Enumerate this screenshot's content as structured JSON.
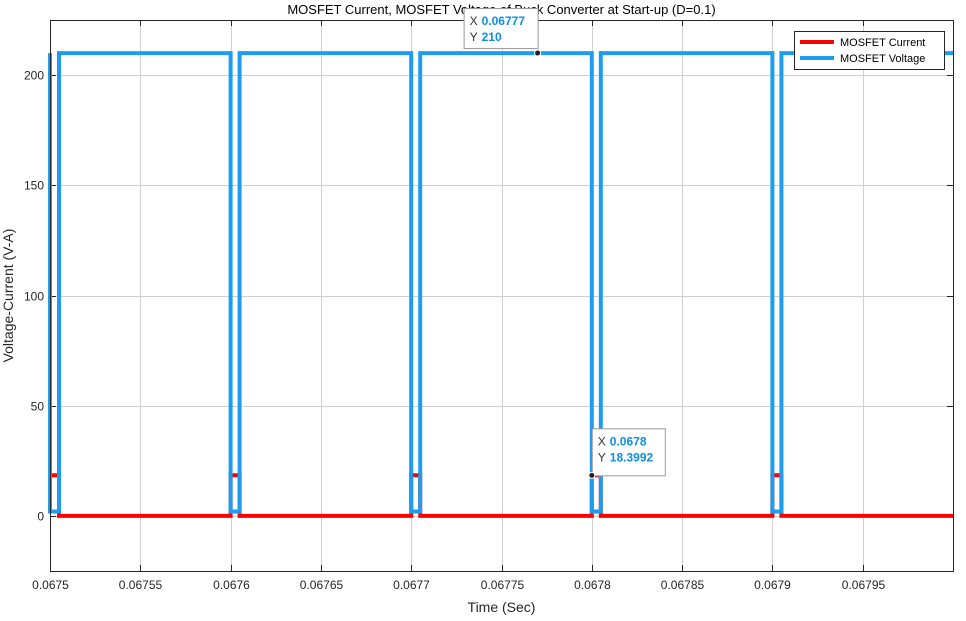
{
  "chart_data": {
    "type": "line",
    "title": "MOSFET Current, MOSFET Voltage of Buck Converter at Start-up (D=0.1)",
    "xlabel": "Time (Sec)",
    "ylabel": "Voltage-Current (V-A)",
    "xlim": [
      0.0675,
      0.068
    ],
    "ylim": [
      -25,
      225
    ],
    "xticks": [
      0.0675,
      0.06755,
      0.0676,
      0.06765,
      0.0677,
      0.06775,
      0.0678,
      0.06785,
      0.0679,
      0.06795
    ],
    "xtick_labels": [
      "0.0675",
      "0.06755",
      "0.0676",
      "0.06765",
      "0.0677",
      "0.06775",
      "0.0678",
      "0.06785",
      "0.0679",
      "0.06795"
    ],
    "yticks": [
      0,
      50,
      100,
      150,
      200
    ],
    "ytick_labels": [
      "0",
      "50",
      "100",
      "150",
      "200"
    ],
    "grid": true,
    "legend_position": "top-right",
    "series": [
      {
        "name": "MOSFET Current",
        "color": "#ff0000",
        "x": [
          0.0675,
          0.067505,
          0.067505,
          0.0676,
          0.0676,
          0.067605,
          0.067605,
          0.0677,
          0.0677,
          0.067705,
          0.067705,
          0.0678,
          0.0678,
          0.067805,
          0.067805,
          0.0679,
          0.0679,
          0.067905,
          0.067905,
          0.068
        ],
        "y": [
          18.4,
          18.4,
          0,
          0,
          18.4,
          18.4,
          0,
          0,
          18.4,
          18.4,
          0,
          0,
          18.4,
          18.4,
          0,
          0,
          18.4,
          18.4,
          0,
          0
        ]
      },
      {
        "name": "MOSFET Voltage",
        "color": "#1e9cf0",
        "x": [
          0.0675,
          0.0675,
          0.067505,
          0.067505,
          0.0676,
          0.0676,
          0.067605,
          0.067605,
          0.0677,
          0.0677,
          0.067705,
          0.067705,
          0.0678,
          0.0678,
          0.067805,
          0.067805,
          0.0679,
          0.0679,
          0.067905,
          0.067905,
          0.068
        ],
        "y": [
          210,
          2,
          2,
          210,
          210,
          2,
          2,
          210,
          210,
          2,
          2,
          210,
          210,
          2,
          2,
          210,
          210,
          2,
          2,
          210,
          210
        ]
      }
    ],
    "datatips": [
      {
        "x": 0.06777,
        "y": 210,
        "x_label": "X",
        "y_label": "Y",
        "x_text": "0.06777",
        "y_text": "210"
      },
      {
        "x": 0.0678,
        "y": 18.3992,
        "x_label": "X",
        "y_label": "Y",
        "x_text": "0.0678",
        "y_text": "18.3992"
      }
    ]
  },
  "colors": {
    "axes_background": "#ffffff",
    "grid": "#cfcfcf",
    "axis": "#262626",
    "datatip_value": "#0a8fe6"
  }
}
